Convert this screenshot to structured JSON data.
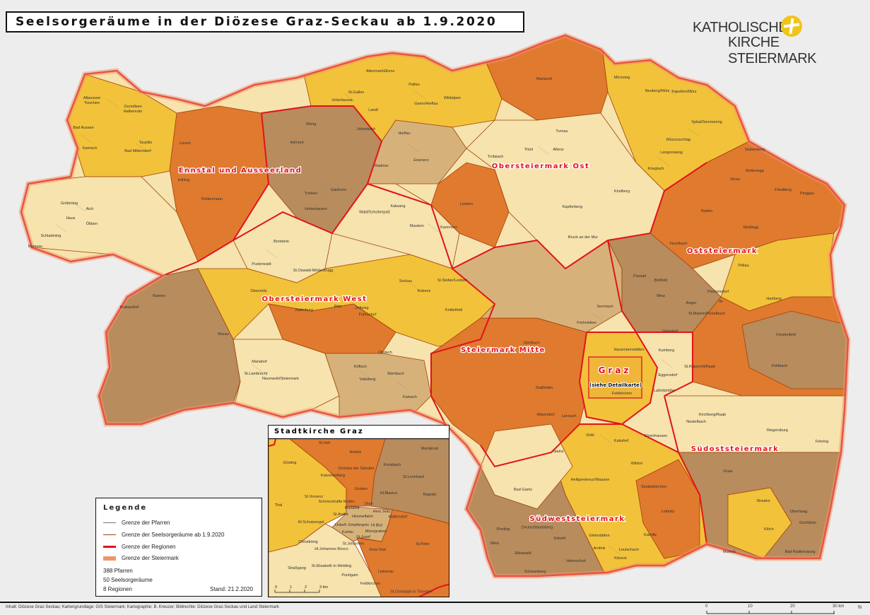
{
  "title": "Seelsorgeräume in der Diözese Graz-Seckau ab 1.9.2020",
  "logo": {
    "line1": "KATHOLISCHE",
    "line2": "KIRCHE STEIERMARK",
    "accent_color": "#f0c419"
  },
  "colors": {
    "region_border": "#e3121b",
    "seelsorgeraum_border": "#a0400a",
    "parish_border": "#777777",
    "state_border": "#f0956a",
    "yellow": "#f2c23a",
    "light": "#f6e3ad",
    "tan": "#d6b27a",
    "brown": "#b88c5c",
    "orange": "#e07a2e"
  },
  "regions": [
    "Ennstal und Ausseerland",
    "Obersteiermark Ost",
    "Obersteiermark West",
    "Oststeiermark",
    "Steiermark Mitte",
    "Graz",
    "Südoststeiermark",
    "Südweststeiermark"
  ],
  "graz_note": "(siehe Detailkarte)",
  "parishes": [
    "Altaussee",
    "Grundlsee",
    "Bad Aussee",
    "Kainisch",
    "Bad Mitterndorf",
    "Tauplitz",
    "Liezen",
    "Admont",
    "Johnsbach",
    "Weng",
    "Gröbming",
    "Aich",
    "Haus",
    "Schladming",
    "Ramsau",
    "Öblarn",
    "Irdning",
    "Rottenmann",
    "Trieben",
    "Gaishorn",
    "Hohentauern",
    "Altenmarkt/Enns",
    "St.Gallen",
    "Unterlaussa",
    "Palfau",
    "Gams/Hieflau",
    "Landl",
    "Wildalpen",
    "Mariazell",
    "Mürzsteg",
    "Neuberg/Mürz",
    "Kapellen/Mürz",
    "Spital/Semmering",
    "Mürzzuschlag",
    "Langenwang",
    "Krieglach",
    "Hieflau",
    "Eisenerz",
    "Radmer",
    "Trofaiach",
    "Thörl",
    "Aflenz",
    "Turnau",
    "Kapfenberg",
    "Bruck an der Mur",
    "Kindberg",
    "Leoben",
    "Kalwang",
    "Mautern",
    "Kammern",
    "Wald/Schoberpaß",
    "St.Stefan/Leoben",
    "Seckau",
    "Kobenz",
    "Knittelfeld",
    "Zeltweg",
    "Fohnsdorf",
    "Judenburg",
    "Pöls",
    "Obdach",
    "Bretstein",
    "Pusterwald",
    "St.Oswald-Möderbrugg",
    "Oberwölz",
    "Murau",
    "Krakaudorf",
    "Ranten",
    "Neumarkt/Steiermark",
    "St.Lambrecht",
    "Mariahof",
    "Köflach",
    "Voitsberg",
    "Bärnbach",
    "Kainach",
    "Passail",
    "Birkfeld",
    "Pöllau",
    "Hartberg",
    "Vorau",
    "Friedberg",
    "Pinggau",
    "Weiz",
    "Gleisdorf",
    "Fürstenfeld",
    "Feldbach",
    "Fehring",
    "Riegersburg",
    "Bad Radkersburg",
    "Mureck",
    "Straden",
    "Gnas",
    "Kirchberg/Raab",
    "Leibnitz",
    "Wildon",
    "Deutschlandsberg",
    "Stainz",
    "Bad Gams",
    "Eibiswald",
    "Arnfels",
    "Leutschach",
    "Frohnleiten",
    "Semriach",
    "Übelbach",
    "Stallhofen",
    "Hitzendorf",
    "Lannach",
    "Dobl",
    "Kalsdorf",
    "Feldkirchen",
    "Hausmannstätten",
    "Kumberg",
    "Eggersdorf",
    "Laßnitzhöhe",
    "Nestelbach",
    "St.Marein/Pickelbach",
    "Ilz",
    "Pischelsdorf",
    "Stubenberg",
    "Rettenegg",
    "Ratten",
    "Strallegg",
    "Fischbach",
    "Anger",
    "St.Ruprecht/Raab",
    "Sinabelkirchen",
    "Gamlitz",
    "Ehrenhausen",
    "Heiligenkreuz/Waasen",
    "Preding",
    "Wies",
    "Schwanberg",
    "Soboth",
    "Gleinstätten",
    "Kitzeck",
    "Heimschuh",
    "Großklein",
    "Oberhaag",
    "Klöch",
    "Tieschen",
    "Halbenrain"
  ],
  "inset": {
    "title": "Stadtkirche Graz",
    "parishes": [
      "St.Veit",
      "Andritz",
      "Mariatrost",
      "Gösting",
      "Kalvarienberg",
      "Christus der Salvator",
      "Kroisbach",
      "St.Leonhard",
      "Graben",
      "Hl.Blasius",
      "Ragnitz",
      "St.Vinzenz",
      "Schmerzhafte Mutter",
      "Mariahilf",
      "Dom",
      "Thal",
      "St.Andrä",
      "Himmelfahrt",
      "Herz Jesu",
      "Waltendorf",
      "Unbefl. Empfängnis",
      "Hl.Blut",
      "Münzgraben",
      "Karlau",
      "St.Josef",
      "Hl.Schutzengel",
      "Christkönig",
      "Hl.Johannes Bosco",
      "St.Johannes",
      "Graz-Süd",
      "St.Peter",
      "Straßgang",
      "St.Elisabeth in Webling",
      "Liebenau",
      "Puntigam",
      "Feldkirchen",
      "St.Christoph in Thondorf"
    ],
    "scale_labels": [
      "0",
      "1",
      "2",
      "3 km"
    ]
  },
  "legend": {
    "title": "Legende",
    "items": [
      {
        "label": "Grenze der Pfarren",
        "color": "#777777"
      },
      {
        "label": "Grenze der Seelsorgeräume ab 1.9.2020",
        "color": "#a0400a"
      },
      {
        "label": "Grenze der Regionen",
        "color": "#e3121b"
      },
      {
        "label": "Grenze der Steiermark",
        "color": "#f0956a"
      }
    ],
    "stats": [
      "388 Pfarren",
      "50 Seelsorgeräume",
      "8 Regionen"
    ],
    "stand": "Stand: 21.2.2020"
  },
  "credits": "Inhalt: Diözese Graz-Seckau; Kartengrundlage: GIS Steiermark; Kartographie: B. Kreuzer; Bildrechte: Diözese Graz-Seckau und Land Steiermark",
  "scale_bar": {
    "labels": [
      "0",
      "10",
      "20",
      "30 km"
    ],
    "north": "N"
  }
}
